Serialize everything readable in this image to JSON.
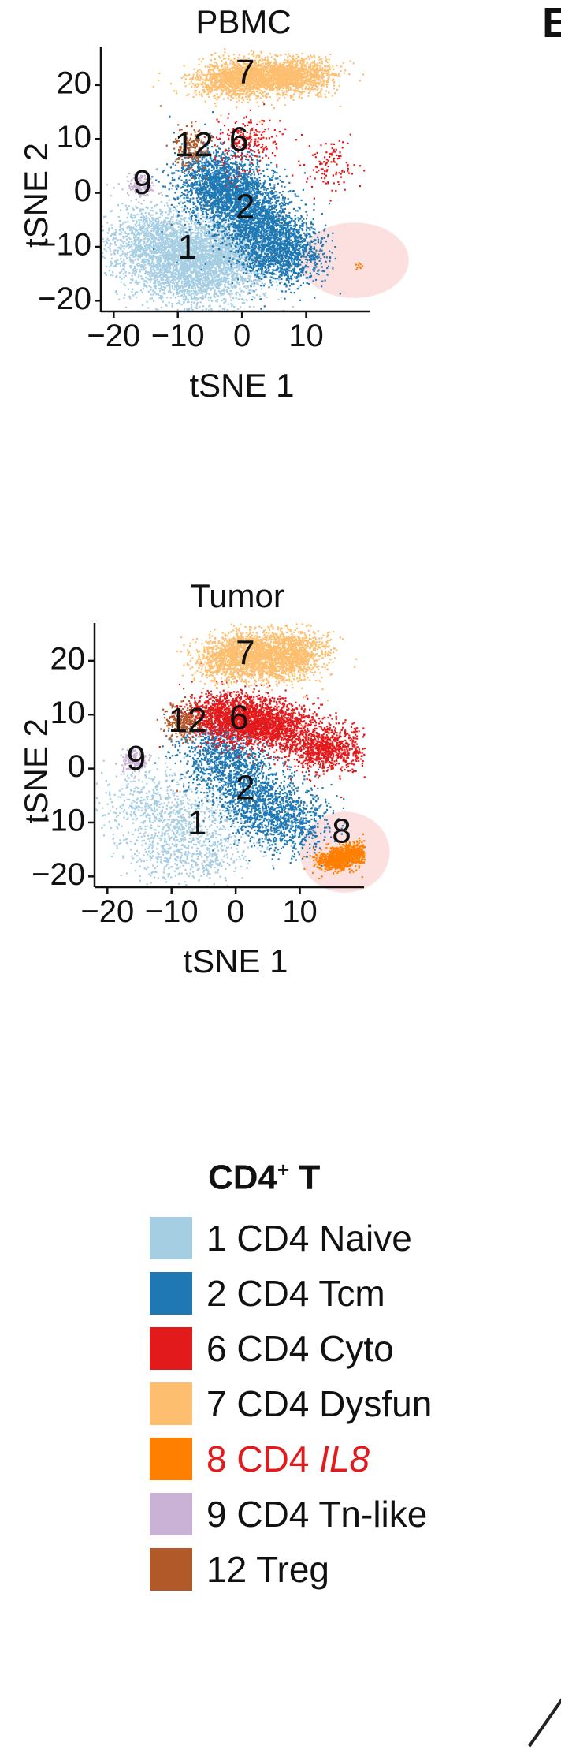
{
  "panel_letter": "E",
  "chart_data": [
    {
      "type": "scatter",
      "title": "PBMC",
      "xlabel": "tSNE 1",
      "ylabel": "tSNE 2",
      "xlim": [
        -22,
        20
      ],
      "ylim": [
        -22,
        27
      ],
      "xticks": [
        -20,
        -10,
        0,
        10
      ],
      "yticks": [
        -20,
        -10,
        0,
        10,
        20
      ],
      "grid": false,
      "highlight": {
        "label": "",
        "cx": 17.5,
        "cy": -12.5,
        "rx": 8.5,
        "ry": 7
      },
      "clusters": [
        {
          "id": "1",
          "label": "1",
          "label_x": -8.5,
          "label_y": -10.5,
          "color": "#a6cee3",
          "centers": [
            [
              -11,
              -12
            ],
            [
              -5,
              -10
            ],
            [
              -14,
              -8
            ],
            [
              -8,
              -16
            ],
            [
              -2,
              -13
            ]
          ],
          "spread": [
            4.2,
            3.2
          ],
          "density": 1.0
        },
        {
          "id": "2",
          "label": "2",
          "label_x": 0.5,
          "label_y": -3,
          "color": "#1f78b4",
          "centers": [
            [
              -2,
              0
            ],
            [
              1,
              -3
            ],
            [
              4,
              -8
            ],
            [
              7,
              -11
            ],
            [
              -5,
              3
            ]
          ],
          "spread": [
            3.0,
            3.2
          ],
          "density": 1.0
        },
        {
          "id": "6",
          "label": "6",
          "label_x": -0.5,
          "label_y": 9.5,
          "color": "#e31a1c",
          "centers": [
            [
              -1,
              9
            ],
            [
              2,
              10
            ],
            [
              14,
              5
            ]
          ],
          "spread": [
            2.0,
            2.5
          ],
          "density": 0.12
        },
        {
          "id": "7",
          "label": "7",
          "label_x": 0.5,
          "label_y": 22,
          "color": "#fdbf6f",
          "centers": [
            [
              -2,
              21
            ],
            [
              1,
              22
            ],
            [
              5,
              21.5
            ],
            [
              9,
              22
            ]
          ],
          "spread": [
            3.0,
            1.6
          ],
          "density": 0.8
        },
        {
          "id": "8",
          "label": "",
          "label_x": 17,
          "label_y": -12,
          "color": "#ff7f00",
          "centers": [
            [
              17.8,
              -13.5
            ]
          ],
          "spread": [
            0.4,
            0.4
          ],
          "density": 0.01
        },
        {
          "id": "9",
          "label": "9",
          "label_x": -15.5,
          "label_y": 1.5,
          "color": "#cab2d6",
          "centers": [
            [
              -16,
              1.5
            ]
          ],
          "spread": [
            1.1,
            1.2
          ],
          "density": 0.15
        },
        {
          "id": "12",
          "label": "12",
          "label_x": -7.5,
          "label_y": 8.5,
          "color": "#b15928",
          "centers": [
            [
              -8,
              8.5
            ]
          ],
          "spread": [
            1.4,
            1.8
          ],
          "density": 0.2
        }
      ]
    },
    {
      "type": "scatter",
      "title": "Tumor",
      "xlabel": "tSNE 1",
      "ylabel": "tSNE 2",
      "xlim": [
        -22,
        20
      ],
      "ylim": [
        -22,
        27
      ],
      "xticks": [
        -20,
        -10,
        0,
        10
      ],
      "yticks": [
        -20,
        -10,
        0,
        10,
        20
      ],
      "grid": false,
      "highlight": {
        "label": "",
        "cx": 17,
        "cy": -15.5,
        "rx": 7,
        "ry": 7.5
      },
      "clusters": [
        {
          "id": "1",
          "label": "1",
          "label_x": -6,
          "label_y": -10.5,
          "color": "#a6cee3",
          "centers": [
            [
              -8,
              -9
            ],
            [
              -14,
              -6
            ],
            [
              -4,
              -14
            ],
            [
              -10,
              -15
            ]
          ],
          "spread": [
            4.0,
            3.5
          ],
          "density": 0.35
        },
        {
          "id": "2",
          "label": "2",
          "label_x": 1.5,
          "label_y": -4,
          "color": "#1f78b4",
          "centers": [
            [
              -1,
              0
            ],
            [
              2,
              -4
            ],
            [
              5,
              -8
            ],
            [
              -3,
              4
            ],
            [
              9,
              -10
            ]
          ],
          "spread": [
            3.2,
            3.0
          ],
          "density": 0.55
        },
        {
          "id": "6",
          "label": "6",
          "label_x": 0.5,
          "label_y": 9,
          "color": "#e31a1c",
          "centers": [
            [
              -2,
              10
            ],
            [
              2,
              9
            ],
            [
              6,
              8
            ],
            [
              14,
              4
            ]
          ],
          "spread": [
            3.0,
            2.2
          ],
          "density": 1.0
        },
        {
          "id": "7",
          "label": "7",
          "label_x": 1.5,
          "label_y": 21,
          "color": "#fdbf6f",
          "centers": [
            [
              -1,
              20
            ],
            [
              2,
              22
            ],
            [
              6,
              20
            ],
            [
              9,
              22
            ]
          ],
          "spread": [
            3.0,
            2.0
          ],
          "density": 0.8
        },
        {
          "id": "8",
          "label": "8",
          "label_x": 16.5,
          "label_y": -12,
          "color": "#ff7f00",
          "centers": [
            [
              15.5,
              -17
            ],
            [
              18,
              -15.5
            ]
          ],
          "spread": [
            1.6,
            0.9
          ],
          "density": 0.55
        },
        {
          "id": "9",
          "label": "9",
          "label_x": -15.5,
          "label_y": 1.5,
          "color": "#cab2d6",
          "centers": [
            [
              -16,
              1.5
            ]
          ],
          "spread": [
            1.1,
            1.1
          ],
          "density": 0.18
        },
        {
          "id": "12",
          "label": "12",
          "label_x": -7.5,
          "label_y": 8.5,
          "color": "#b15928",
          "centers": [
            [
              -8.5,
              8.5
            ]
          ],
          "spread": [
            1.3,
            1.8
          ],
          "density": 0.25
        }
      ]
    }
  ],
  "legend": {
    "title_main": "CD4",
    "title_sup": "+",
    "title_rest": " T",
    "items": [
      {
        "label": "1 CD4 Naive",
        "color": "#a6cee3",
        "text_color": "#111111",
        "italic_part": ""
      },
      {
        "label": "2 CD4 Tcm",
        "color": "#1f78b4",
        "text_color": "#111111",
        "italic_part": ""
      },
      {
        "label": "6 CD4 Cyto",
        "color": "#e31a1c",
        "text_color": "#111111",
        "italic_part": ""
      },
      {
        "label": "7 CD4 Dysfun",
        "color": "#fdbf6f",
        "text_color": "#111111",
        "italic_part": ""
      },
      {
        "label": "8 CD4 ",
        "color": "#ff7f00",
        "text_color": "#e31a1c",
        "italic_part": "IL8"
      },
      {
        "label": "9 CD4 Tn-like",
        "color": "#cab2d6",
        "text_color": "#111111",
        "italic_part": ""
      },
      {
        "label": "12 Treg",
        "color": "#b15928",
        "text_color": "#111111",
        "italic_part": ""
      }
    ]
  }
}
